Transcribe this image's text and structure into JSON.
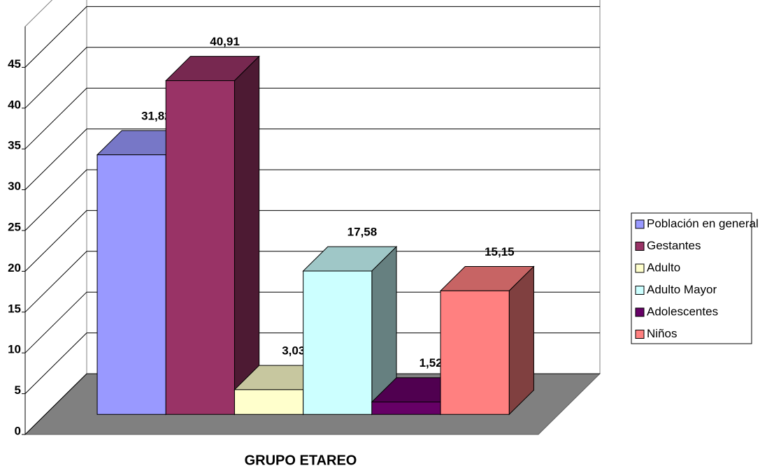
{
  "chart_data": {
    "type": "bar3d",
    "x_label": "GRUPO ETAREO",
    "ylim": [
      0,
      50
    ],
    "yticks": [
      0,
      5,
      10,
      15,
      20,
      25,
      30,
      35,
      40,
      45
    ],
    "grid": true,
    "legend": "right",
    "series": [
      {
        "name": "Población en general",
        "color": "#9999ff",
        "values": [
          31.82
        ],
        "value_labels": [
          "31,82"
        ]
      },
      {
        "name": "Gestantes",
        "color": "#993366",
        "values": [
          40.91
        ],
        "value_labels": [
          "40,91"
        ]
      },
      {
        "name": "Adulto",
        "color": "#ffffcc",
        "values": [
          3.03
        ],
        "value_labels": [
          "3,03"
        ]
      },
      {
        "name": "Adulto Mayor",
        "color": "#ccffff",
        "values": [
          17.58
        ],
        "value_labels": [
          "17,58"
        ]
      },
      {
        "name": "Adolescentes",
        "color": "#660066",
        "values": [
          1.52
        ],
        "value_labels": [
          "1,52"
        ]
      },
      {
        "name": "Niños",
        "color": "#ff8080",
        "values": [
          15.15
        ],
        "value_labels": [
          "15,15"
        ]
      }
    ]
  }
}
